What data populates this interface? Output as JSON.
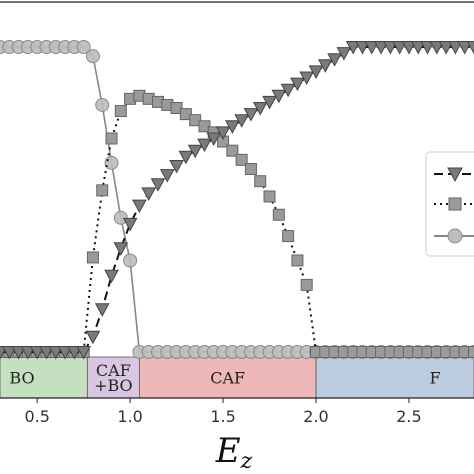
{
  "chart_data": {
    "type": "line",
    "title": "",
    "xlabel_main": "E",
    "xlabel_sub": "z",
    "ylabel": "",
    "xlim": [
      0.3,
      2.85
    ],
    "ylim": [
      0,
      1
    ],
    "grid": false,
    "legend_placement": "right",
    "xticks": [
      {
        "value": 0.5,
        "label": "0.5"
      },
      {
        "value": 1.0,
        "label": "1.0"
      },
      {
        "value": 1.5,
        "label": "1.5"
      },
      {
        "value": 2.0,
        "label": "2.0"
      },
      {
        "value": 2.5,
        "label": "2.5"
      }
    ],
    "regions": [
      {
        "x0": 0.3,
        "x1": 0.77,
        "lines": [
          "BO"
        ],
        "color": "#c5e0c0"
      },
      {
        "x0": 0.77,
        "x1": 1.05,
        "lines": [
          "CAF",
          "+BO"
        ],
        "color": "#d9c6e2"
      },
      {
        "x0": 1.05,
        "x1": 2.0,
        "lines": [
          "CAF"
        ],
        "color": "#eeb8b8"
      },
      {
        "x0": 2.0,
        "x1": 2.85,
        "lines": [
          "F"
        ],
        "color": "#bccce0"
      }
    ],
    "series": [
      {
        "marker": "triangle-down",
        "linestyle": "dashed",
        "color": "#777777",
        "x": [
          0.3,
          0.35,
          0.4,
          0.45,
          0.5,
          0.55,
          0.6,
          0.65,
          0.7,
          0.75,
          0.8,
          0.85,
          0.9,
          0.95,
          1.0,
          1.05,
          1.1,
          1.15,
          1.2,
          1.25,
          1.3,
          1.35,
          1.4,
          1.45,
          1.5,
          1.55,
          1.6,
          1.65,
          1.7,
          1.75,
          1.8,
          1.85,
          1.9,
          1.95,
          2.0,
          2.05,
          2.1,
          2.15,
          2.2,
          2.25,
          2.3,
          2.35,
          2.4,
          2.45,
          2.5,
          2.55,
          2.6,
          2.65,
          2.7,
          2.75,
          2.8,
          2.85
        ],
        "y": [
          0,
          0,
          0,
          0,
          0,
          0,
          0,
          0,
          0,
          0,
          0.05,
          0.14,
          0.25,
          0.34,
          0.42,
          0.48,
          0.52,
          0.55,
          0.58,
          0.61,
          0.64,
          0.66,
          0.68,
          0.7,
          0.72,
          0.74,
          0.76,
          0.78,
          0.8,
          0.82,
          0.84,
          0.86,
          0.88,
          0.9,
          0.92,
          0.94,
          0.96,
          0.98,
          1,
          1,
          1,
          1,
          1,
          1,
          1,
          1,
          1,
          1,
          1,
          1,
          1,
          1
        ]
      },
      {
        "marker": "square",
        "linestyle": "dotted",
        "color": "#888888",
        "x": [
          0.3,
          0.35,
          0.4,
          0.45,
          0.5,
          0.55,
          0.6,
          0.65,
          0.7,
          0.75,
          0.8,
          0.85,
          0.9,
          0.95,
          1.0,
          1.05,
          1.1,
          1.15,
          1.2,
          1.25,
          1.3,
          1.35,
          1.4,
          1.45,
          1.5,
          1.55,
          1.6,
          1.65,
          1.7,
          1.75,
          1.8,
          1.85,
          1.9,
          1.95,
          2.0,
          2.05,
          2.1,
          2.15,
          2.2,
          2.25,
          2.3,
          2.35,
          2.4,
          2.45,
          2.5,
          2.55,
          2.6,
          2.65,
          2.7,
          2.75,
          2.8,
          2.85
        ],
        "y": [
          0,
          0,
          0,
          0,
          0,
          0,
          0,
          0,
          0,
          0,
          0.31,
          0.53,
          0.7,
          0.79,
          0.83,
          0.84,
          0.83,
          0.82,
          0.81,
          0.8,
          0.78,
          0.76,
          0.74,
          0.72,
          0.69,
          0.66,
          0.63,
          0.6,
          0.56,
          0.51,
          0.45,
          0.38,
          0.3,
          0.22,
          0,
          0,
          0,
          0,
          0,
          0,
          0,
          0,
          0,
          0,
          0,
          0,
          0,
          0,
          0,
          0,
          0,
          0
        ]
      },
      {
        "marker": "circle",
        "linestyle": "solid",
        "color": "#aaaaaa",
        "x": [
          0.3,
          0.35,
          0.4,
          0.45,
          0.5,
          0.55,
          0.6,
          0.65,
          0.7,
          0.75,
          0.8,
          0.85,
          0.9,
          0.95,
          1.0,
          1.05,
          1.1,
          1.15,
          1.2,
          1.25,
          1.3,
          1.35,
          1.4,
          1.45,
          1.5,
          1.55,
          1.6,
          1.65,
          1.7,
          1.75,
          1.8,
          1.85,
          1.9,
          1.95,
          2.0,
          2.05,
          2.1,
          2.15,
          2.2,
          2.25,
          2.3,
          2.35,
          2.4,
          2.45,
          2.5,
          2.55,
          2.6,
          2.65,
          2.7,
          2.75,
          2.8,
          2.85
        ],
        "y": [
          1,
          1,
          1,
          1,
          1,
          1,
          1,
          1,
          1,
          1,
          0.97,
          0.81,
          0.62,
          0.44,
          0.3,
          0,
          0,
          0,
          0,
          0,
          0,
          0,
          0,
          0,
          0,
          0,
          0,
          0,
          0,
          0,
          0,
          0,
          0,
          0,
          0,
          0,
          0,
          0,
          0,
          0,
          0,
          0,
          0,
          0,
          0,
          0,
          0,
          0,
          0,
          0,
          0,
          0
        ]
      }
    ]
  }
}
